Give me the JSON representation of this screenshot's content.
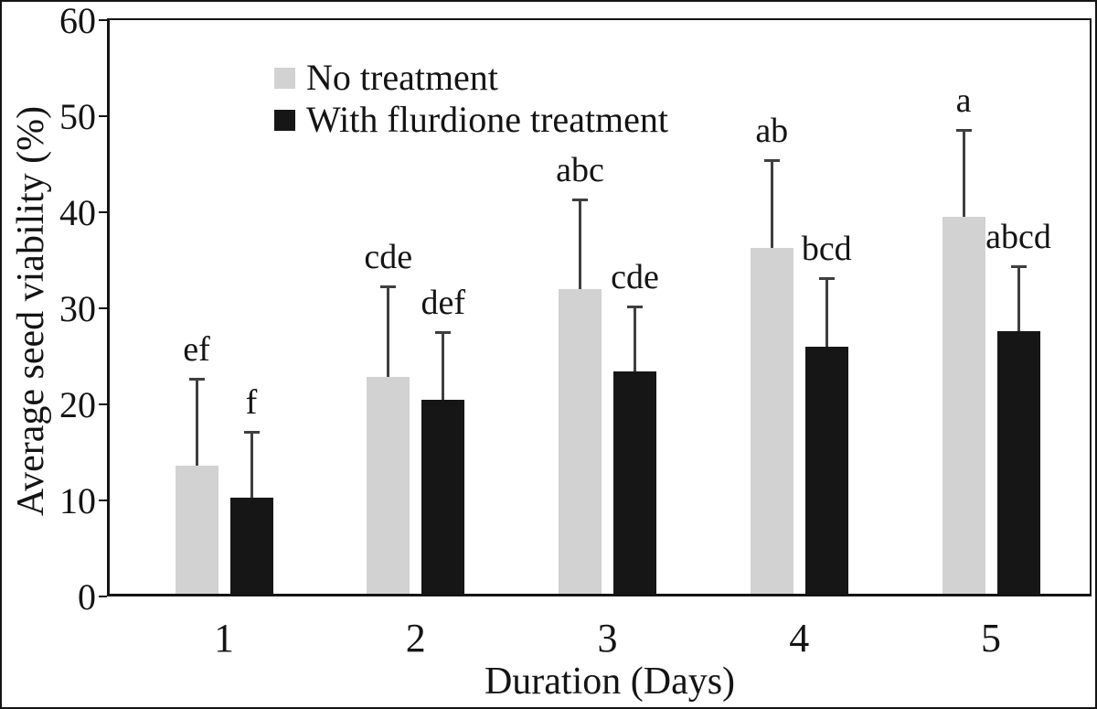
{
  "chart_data": {
    "type": "bar",
    "title": "",
    "xlabel": "Duration (Days)",
    "ylabel": "Average seed viability (%)",
    "ylim": [
      0,
      60
    ],
    "yticks": [
      0,
      10,
      20,
      30,
      40,
      50,
      60
    ],
    "categories": [
      "1",
      "2",
      "3",
      "4",
      "5"
    ],
    "grid": false,
    "legend_position": "top-left-inside",
    "error_bars": "upper-only",
    "series": [
      {
        "name": "No treatment",
        "color": "#d2d2d2",
        "values": [
          13.3,
          22.6,
          31.7,
          36.0,
          39.2
        ],
        "errors": [
          9.2,
          9.5,
          9.4,
          9.2,
          9.2
        ],
        "sig_letters": [
          "ef",
          "cde",
          "abc",
          "ab",
          "a"
        ]
      },
      {
        "name": "With flurdione treatment",
        "color": "#161616",
        "values": [
          10.0,
          20.2,
          23.1,
          25.7,
          27.3
        ],
        "errors": [
          7.0,
          7.1,
          6.9,
          7.3,
          6.9
        ],
        "sig_letters": [
          "f",
          "def",
          "cde",
          "bcd",
          "abcd"
        ]
      }
    ],
    "colors": {
      "axis": "#141414",
      "error_bar": "#3f3f3f",
      "text": "#141414",
      "background": "#ffffff"
    }
  }
}
